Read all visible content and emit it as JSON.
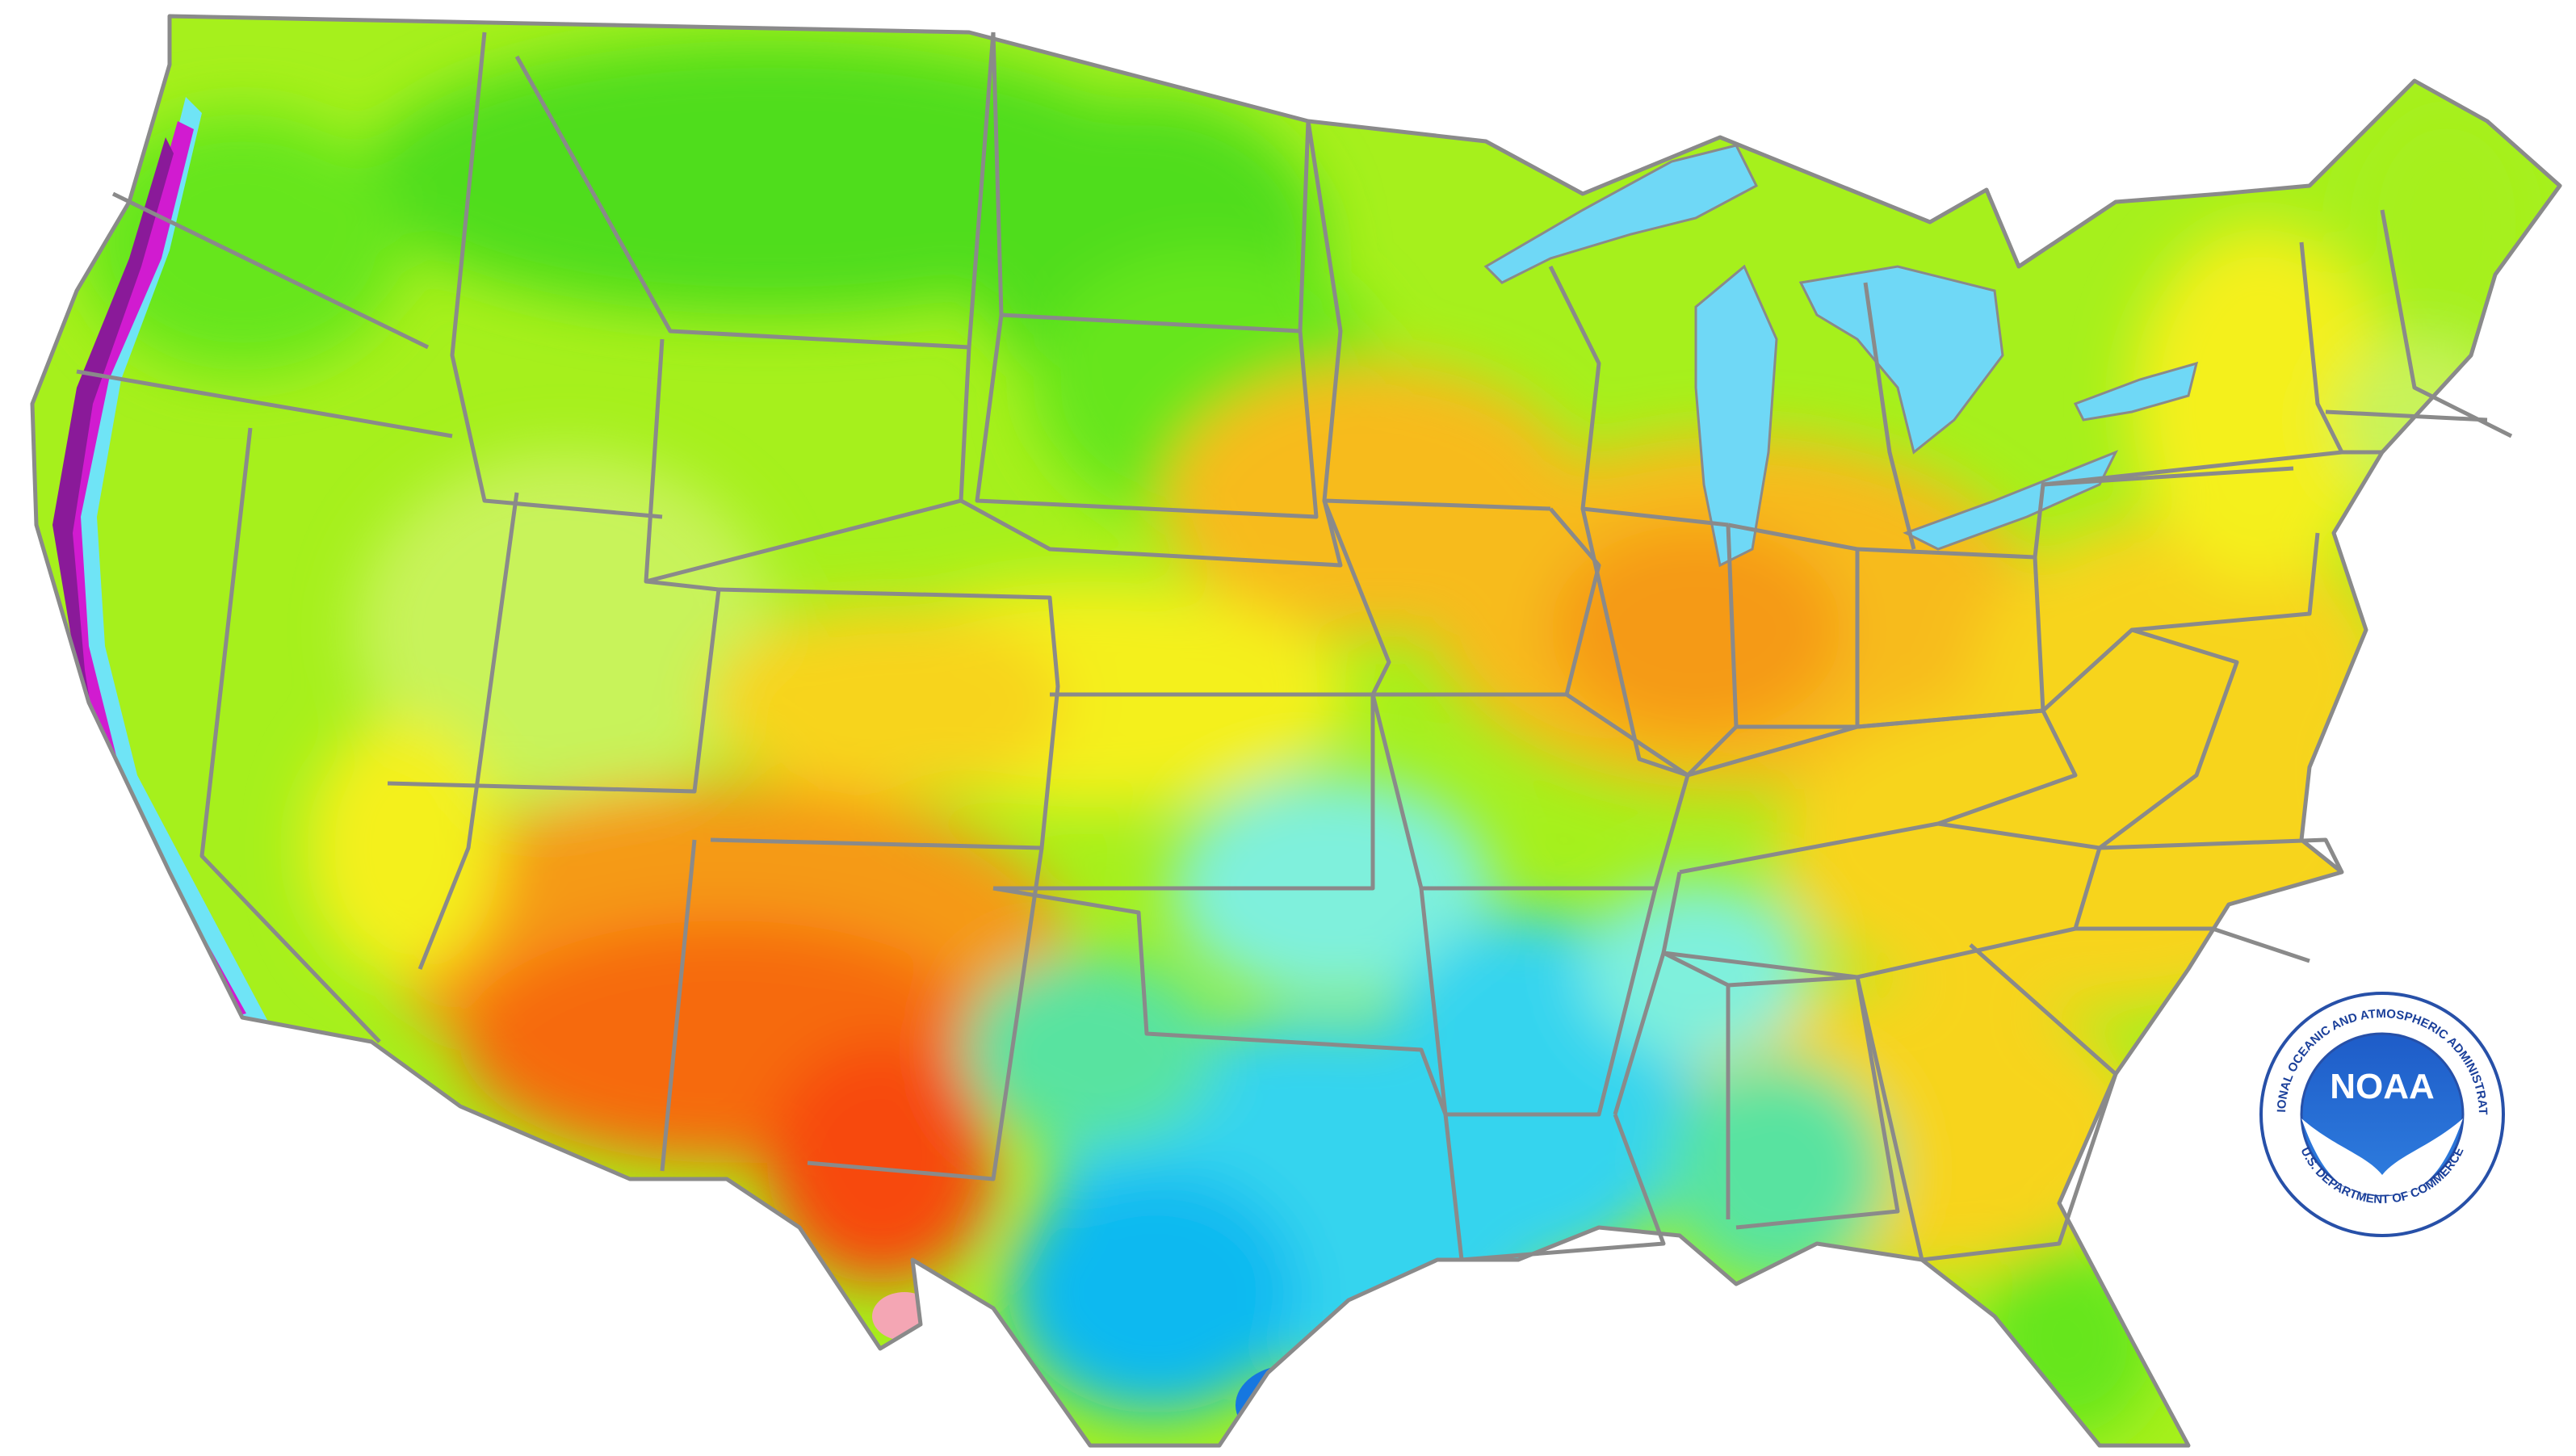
{
  "map": {
    "subject": "contiguous United States",
    "colors": {
      "background": "#ffffff",
      "state_border": "#8a8a8a",
      "lakes": "#6fd8f6",
      "palette": {
        "dark_purple": "#3a0a4f",
        "purple": "#8a1a99",
        "magenta": "#d11bd0",
        "light_magenta": "#e77fe0",
        "teal_green": "#59e3a0",
        "light_blue": "#6fe4f6",
        "cyan": "#35d4ee",
        "sky_blue": "#10b9f0",
        "blue": "#1677e0",
        "dark_blue": "#0e46c4",
        "aqua": "#7ff0dc",
        "green": "#4fdd1a",
        "bright_green": "#66e61f",
        "yellow_green": "#a6f01c",
        "light_yellow_green": "#c8f35a",
        "yellow": "#f4f01c",
        "gold": "#f7d41e",
        "orange_yellow": "#f7bb1a",
        "orange": "#f59a15",
        "dark_orange": "#f66a0c",
        "red_orange": "#f74808",
        "pink": "#f4a6b4"
      }
    }
  },
  "logo": {
    "wordmark": "NOAA",
    "ring_top": "NATIONAL OCEANIC AND ATMOSPHERIC ADMINISTRATION",
    "ring_bottom": "U.S. DEPARTMENT OF COMMERCE",
    "colors": {
      "ring": "#ffffff",
      "ring_border": "#2750a8",
      "disc_top": "#1e5cc8",
      "disc_bottom": "#2f7fe0",
      "text": "#1a3f9a"
    }
  }
}
